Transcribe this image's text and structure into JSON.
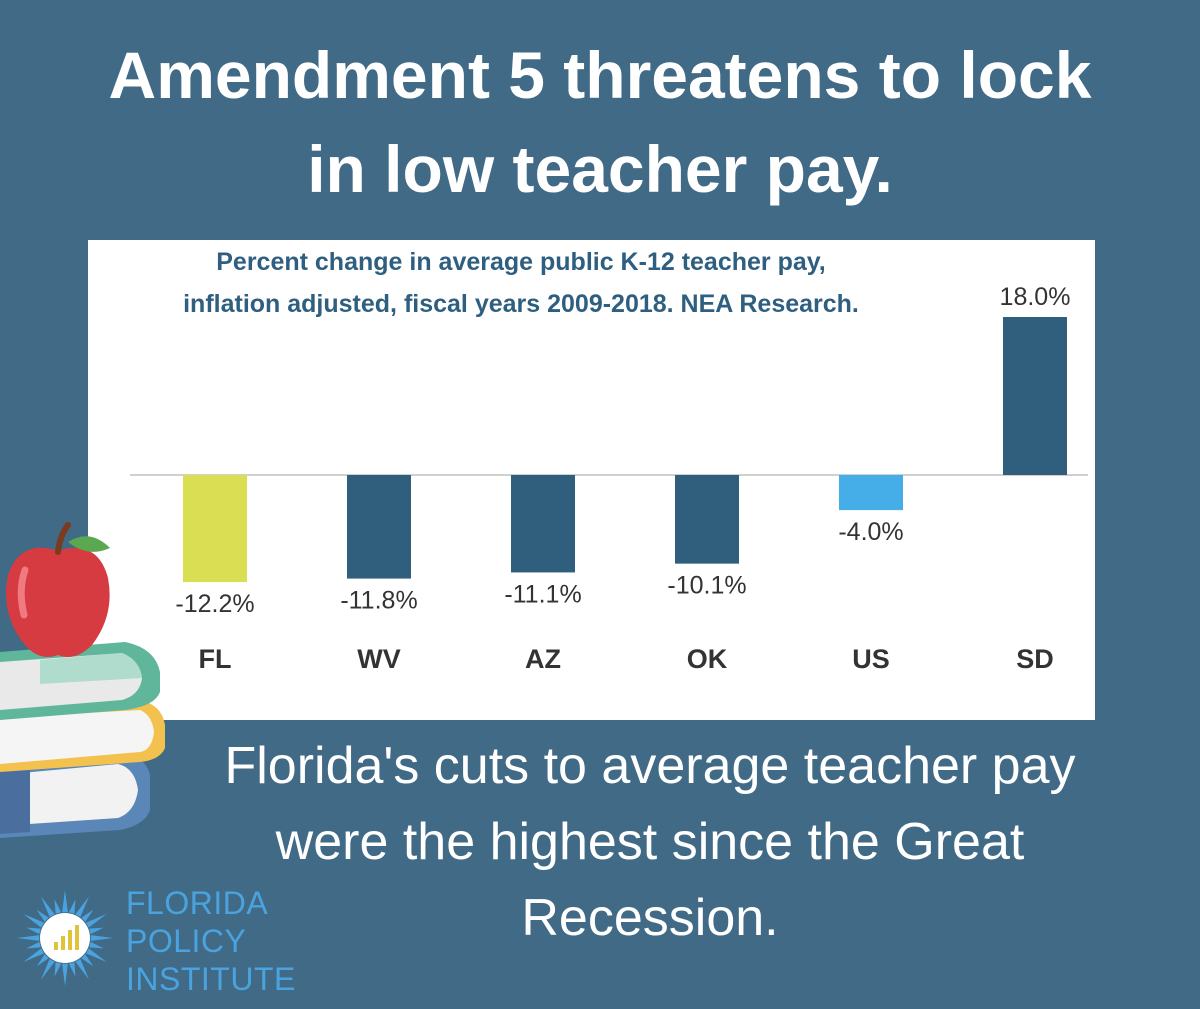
{
  "headline": {
    "line1": "Amendment 5 threatens to lock",
    "line2": "in low teacher pay."
  },
  "caption": {
    "line1": "Florida's cuts to average teacher pay",
    "line2": "were the highest since the Great",
    "line3": "Recession."
  },
  "logo": {
    "line1": "FLORIDA",
    "line2": "POLICY",
    "line3": "INSTITUTE",
    "icon": "sunburst-bar-chart-icon"
  },
  "decoration": {
    "icon": "apple-on-books-icon"
  },
  "colors": {
    "background": "#406a86",
    "panel": "#ffffff",
    "title_text": "#2f5f80",
    "bar_default": "#305f7e",
    "bar_florida": "#d9de52",
    "bar_us": "#45aee8",
    "axis_text": "#333333",
    "logo_blue": "#4aa3df"
  },
  "chart_data": {
    "type": "bar",
    "title_line1": "Percent change in average public K-12 teacher pay,",
    "title_line2": "inflation adjusted, fiscal years 2009-2018. NEA Research.",
    "xlabel": "",
    "ylabel": "",
    "categories": [
      "FL",
      "WV",
      "AZ",
      "OK",
      "US",
      "SD"
    ],
    "values": [
      -12.2,
      -11.8,
      -11.1,
      -10.1,
      -4.0,
      18.0
    ],
    "data_labels": [
      "-12.2%",
      "-11.8%",
      "-11.1%",
      "-10.1%",
      "-4.0%",
      "18.0%"
    ],
    "bar_colors": [
      "#d9de52",
      "#305f7e",
      "#305f7e",
      "#305f7e",
      "#45aee8",
      "#305f7e"
    ],
    "unit": "%",
    "grid": false,
    "legend": "none"
  }
}
